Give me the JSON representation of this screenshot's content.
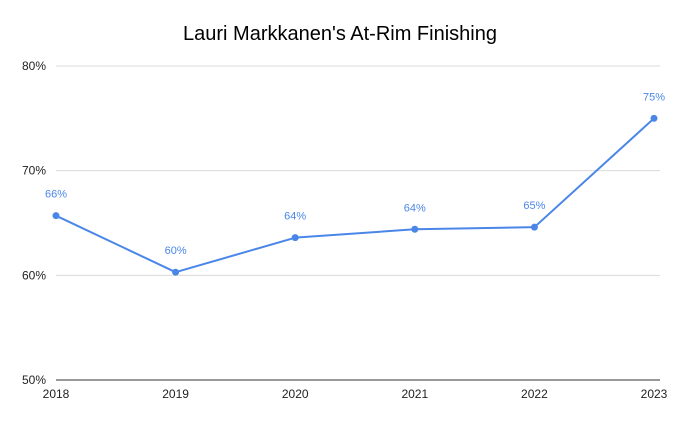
{
  "chart_data": {
    "type": "line",
    "title": "Lauri Markkanen's At-Rim Finishing",
    "xlabel": "",
    "ylabel": "",
    "categories": [
      "2018",
      "2019",
      "2020",
      "2021",
      "2022",
      "2023"
    ],
    "series": [
      {
        "values": [
          65.7,
          60.3,
          63.6,
          64.4,
          64.6,
          75.0
        ],
        "data_labels": [
          "66%",
          "60%",
          "64%",
          "64%",
          "65%",
          "75%"
        ],
        "color": "#4a86e8"
      }
    ],
    "ylim": [
      50,
      80
    ],
    "yticks": [
      50,
      60,
      70,
      80
    ],
    "ytick_labels": [
      "50%",
      "60%",
      "70%",
      "80%"
    ],
    "grid": true,
    "legend": "none"
  }
}
